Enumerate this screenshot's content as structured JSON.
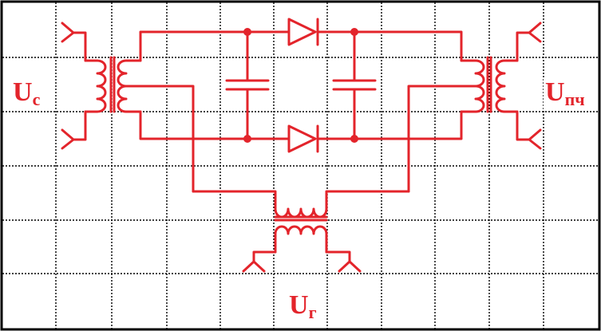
{
  "colors": {
    "circuit": "#e3242b",
    "grid": "#000000",
    "background": "#ffffff"
  },
  "labels": {
    "signal": {
      "main": "U",
      "sub": "c"
    },
    "intermediate_frequency": {
      "main": "U",
      "sub": "пч"
    },
    "heterodyne": {
      "main": "U",
      "sub": "г"
    }
  }
}
